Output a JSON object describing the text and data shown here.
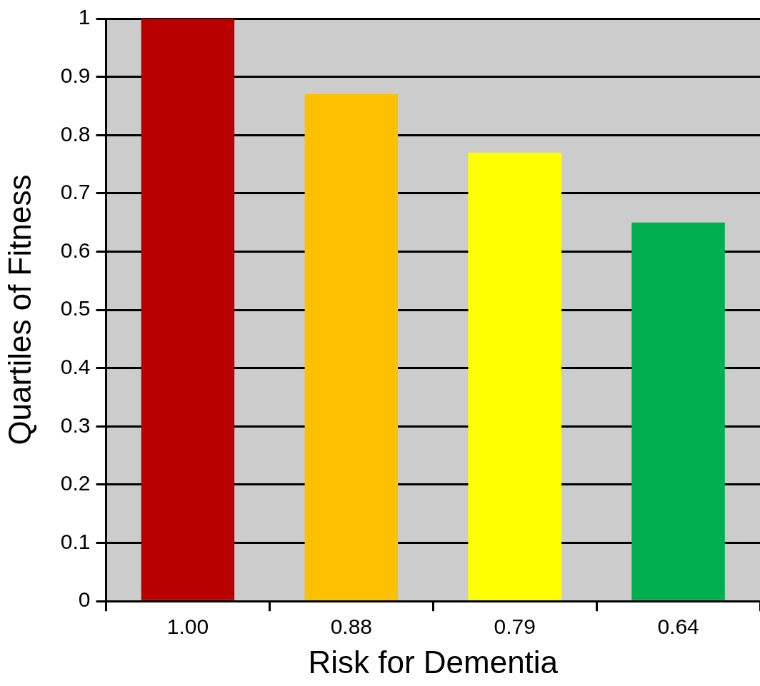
{
  "chart_data": {
    "type": "bar",
    "xlabel": "Risk for Dementia",
    "ylabel": "Quartiles of Fitness",
    "categories": [
      "1.00",
      "0.88",
      "0.79",
      "0.64"
    ],
    "values": [
      1.0,
      0.87,
      0.77,
      0.65
    ],
    "colors": [
      "#b80000",
      "#ffc000",
      "#ffff00",
      "#00b050"
    ],
    "ylim": [
      0,
      1
    ],
    "yticks": [
      0,
      0.1,
      0.2,
      0.3,
      0.4,
      0.5,
      0.6,
      0.7,
      0.8,
      0.9,
      1
    ],
    "grid": "y",
    "legend": false
  }
}
